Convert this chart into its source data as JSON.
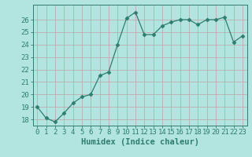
{
  "x": [
    0,
    1,
    2,
    3,
    4,
    5,
    6,
    7,
    8,
    9,
    10,
    11,
    12,
    13,
    14,
    15,
    16,
    17,
    18,
    19,
    20,
    21,
    22,
    23
  ],
  "y": [
    19.0,
    18.1,
    17.8,
    18.5,
    19.3,
    19.8,
    20.0,
    21.5,
    21.8,
    24.0,
    26.1,
    26.6,
    24.8,
    24.8,
    25.5,
    25.8,
    26.0,
    26.0,
    25.6,
    26.0,
    26.0,
    26.2,
    24.2,
    24.7
  ],
  "line_color": "#2e7d6e",
  "marker": "D",
  "marker_size": 2.5,
  "bg_color": "#b3e5e0",
  "grid_color": "#d0f0ee",
  "title": "",
  "xlabel": "Humidex (Indice chaleur)",
  "ylabel": "",
  "ylim": [
    17.5,
    27.2
  ],
  "xlim": [
    -0.5,
    23.5
  ],
  "yticks": [
    18,
    19,
    20,
    21,
    22,
    23,
    24,
    25,
    26
  ],
  "xticks": [
    0,
    1,
    2,
    3,
    4,
    5,
    6,
    7,
    8,
    9,
    10,
    11,
    12,
    13,
    14,
    15,
    16,
    17,
    18,
    19,
    20,
    21,
    22,
    23
  ],
  "tick_color": "#2e7d6e",
  "label_fontsize": 6.5,
  "xlabel_fontsize": 7.5
}
